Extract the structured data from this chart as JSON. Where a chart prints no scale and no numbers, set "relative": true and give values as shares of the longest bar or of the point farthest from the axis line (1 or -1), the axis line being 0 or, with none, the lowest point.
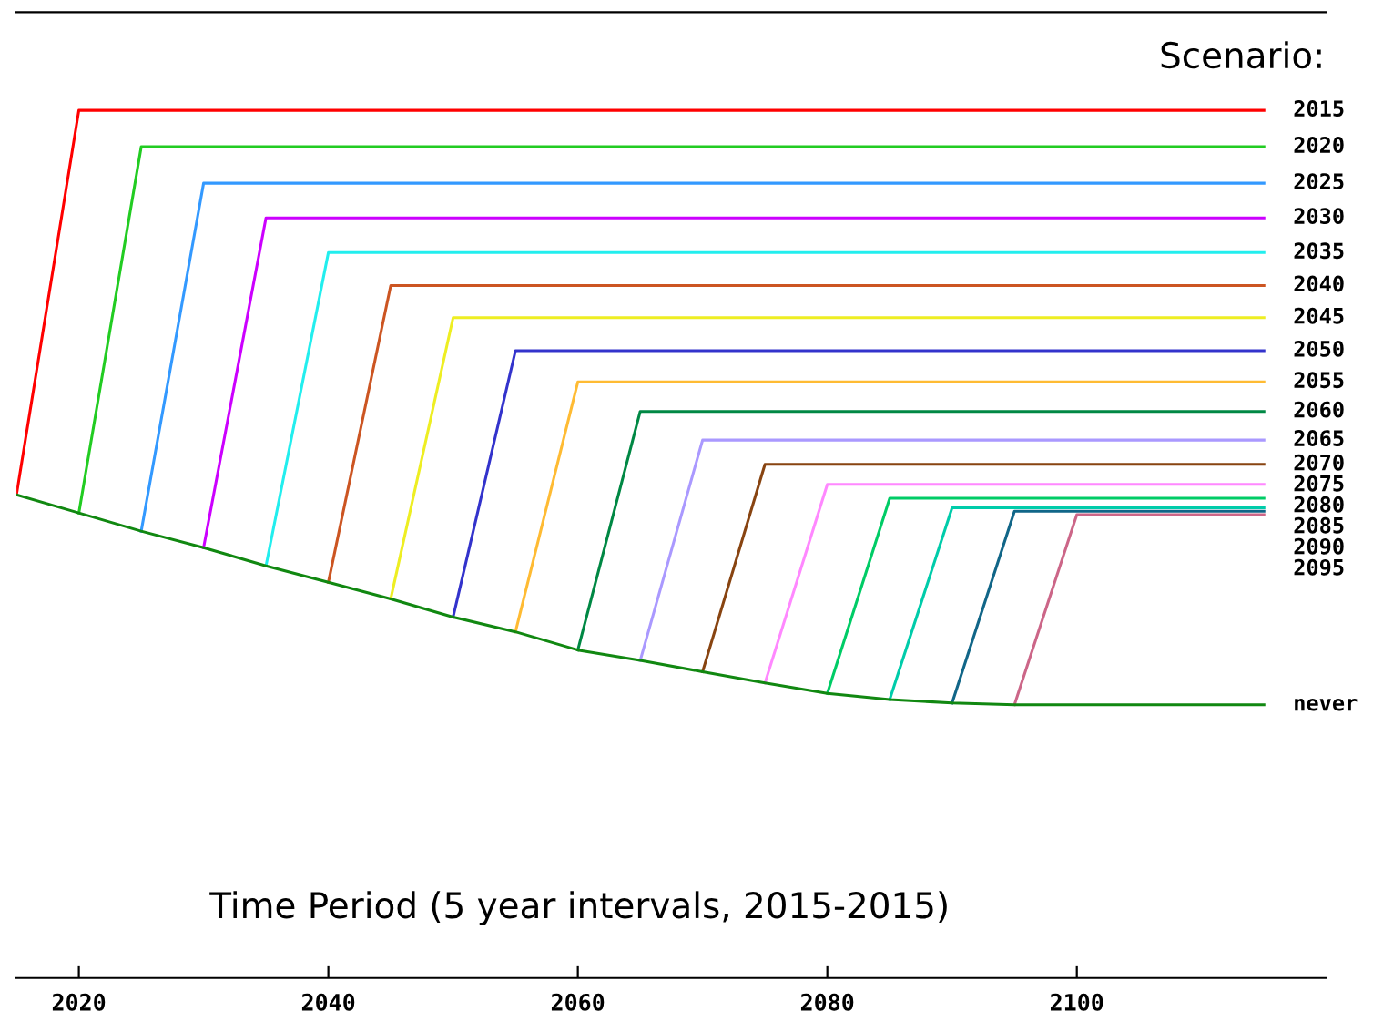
{
  "chart_data": {
    "type": "line",
    "relative": true,
    "legend_title": "Scenario:",
    "xlabel": "Time Period (5 year intervals, 2015-2015)",
    "xlim": [
      2015,
      2120
    ],
    "xticks": [
      2020,
      2040,
      2060,
      2080,
      2100
    ],
    "grid": false,
    "legend": false,
    "marker": "none",
    "line_style": "solid",
    "series": [
      {
        "name": "2015",
        "color": "#ff0000",
        "x": [
          2015,
          2020,
          2115
        ],
        "values": [
          0.557,
          1.0,
          1.0
        ]
      },
      {
        "name": "2020",
        "color": "#22cc22",
        "x": [
          2020,
          2025,
          2115
        ],
        "values": [
          0.536,
          0.958,
          0.958
        ]
      },
      {
        "name": "2025",
        "color": "#3399ff",
        "x": [
          2025,
          2030,
          2115
        ],
        "values": [
          0.515,
          0.916,
          0.916
        ]
      },
      {
        "name": "2030",
        "color": "#cc00ff",
        "x": [
          2030,
          2035,
          2115
        ],
        "values": [
          0.496,
          0.876,
          0.876
        ]
      },
      {
        "name": "2035",
        "color": "#22eeee",
        "x": [
          2035,
          2040,
          2115
        ],
        "values": [
          0.475,
          0.836,
          0.836
        ]
      },
      {
        "name": "2040",
        "color": "#cc5522",
        "x": [
          2040,
          2045,
          2115
        ],
        "values": [
          0.456,
          0.798,
          0.798
        ]
      },
      {
        "name": "2045",
        "color": "#eeee22",
        "x": [
          2045,
          2050,
          2115
        ],
        "values": [
          0.437,
          0.761,
          0.761
        ]
      },
      {
        "name": "2050",
        "color": "#3333cc",
        "x": [
          2050,
          2055,
          2115
        ],
        "values": [
          0.416,
          0.723,
          0.723
        ]
      },
      {
        "name": "2055",
        "color": "#ffbb33",
        "x": [
          2055,
          2060,
          2115
        ],
        "values": [
          0.399,
          0.687,
          0.687
        ]
      },
      {
        "name": "2060",
        "color": "#008844",
        "x": [
          2060,
          2065,
          2115
        ],
        "values": [
          0.378,
          0.653,
          0.653
        ]
      },
      {
        "name": "2065",
        "color": "#aa99ff",
        "x": [
          2065,
          2070,
          2115
        ],
        "values": [
          0.366,
          0.62,
          0.62
        ]
      },
      {
        "name": "2070",
        "color": "#884411",
        "x": [
          2070,
          2075,
          2115
        ],
        "values": [
          0.353,
          0.592,
          0.592
        ]
      },
      {
        "name": "2075",
        "color": "#ff88ff",
        "x": [
          2075,
          2080,
          2115
        ],
        "values": [
          0.34,
          0.569,
          0.569
        ]
      },
      {
        "name": "2080",
        "color": "#00cc66",
        "x": [
          2080,
          2085,
          2115
        ],
        "values": [
          0.328,
          0.553,
          0.553
        ]
      },
      {
        "name": "2085",
        "color": "#00ccaa",
        "x": [
          2085,
          2090,
          2115
        ],
        "values": [
          0.321,
          0.542,
          0.542
        ]
      },
      {
        "name": "2090",
        "color": "#116688",
        "x": [
          2090,
          2095,
          2115
        ],
        "values": [
          0.317,
          0.538,
          0.538
        ]
      },
      {
        "name": "2095",
        "color": "#cc6688",
        "x": [
          2095,
          2100,
          2115
        ],
        "values": [
          0.315,
          0.534,
          0.534
        ]
      },
      {
        "name": "never",
        "color": "#118811",
        "x": [
          2015,
          2020,
          2025,
          2030,
          2035,
          2040,
          2045,
          2050,
          2055,
          2060,
          2065,
          2070,
          2075,
          2080,
          2085,
          2090,
          2095,
          2115
        ],
        "values": [
          0.557,
          0.536,
          0.515,
          0.496,
          0.475,
          0.456,
          0.437,
          0.416,
          0.399,
          0.378,
          0.366,
          0.353,
          0.34,
          0.328,
          0.321,
          0.317,
          0.315,
          0.315
        ]
      }
    ]
  }
}
